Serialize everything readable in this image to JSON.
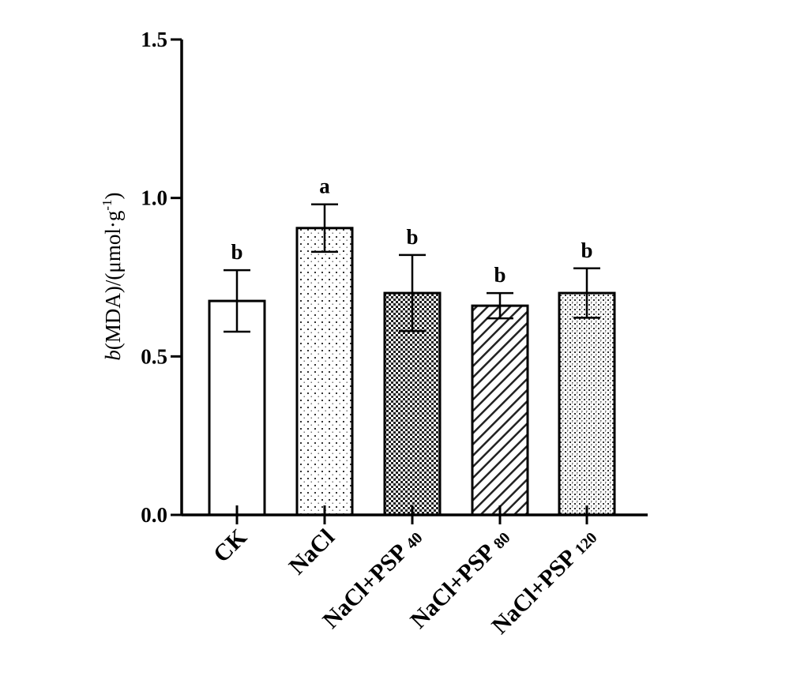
{
  "chart_data": {
    "type": "bar",
    "categories": [
      {
        "main": "CK",
        "sub": ""
      },
      {
        "main": "NaCl",
        "sub": ""
      },
      {
        "main": "NaCl+PSP",
        "sub": "40"
      },
      {
        "main": "NaCl+PSP",
        "sub": "80"
      },
      {
        "main": "NaCl+PSP",
        "sub": "120"
      }
    ],
    "values": [
      0.675,
      0.905,
      0.7,
      0.66,
      0.7
    ],
    "errors": [
      0.097,
      0.075,
      0.12,
      0.04,
      0.078
    ],
    "significance": [
      "b",
      "a",
      "b",
      "b",
      "b"
    ],
    "patterns": [
      "white",
      "fine-dots",
      "checker",
      "diagonal",
      "dense-dots"
    ],
    "ylabel": {
      "var": "b",
      "mid": "(MDA)/(μmol·g",
      "sup": "-1",
      "end": ")"
    },
    "ylim": [
      0,
      1.5
    ],
    "yticks": [
      "0.0",
      "0.5",
      "1.0",
      "1.5"
    ],
    "grid": false,
    "legend": "none"
  }
}
